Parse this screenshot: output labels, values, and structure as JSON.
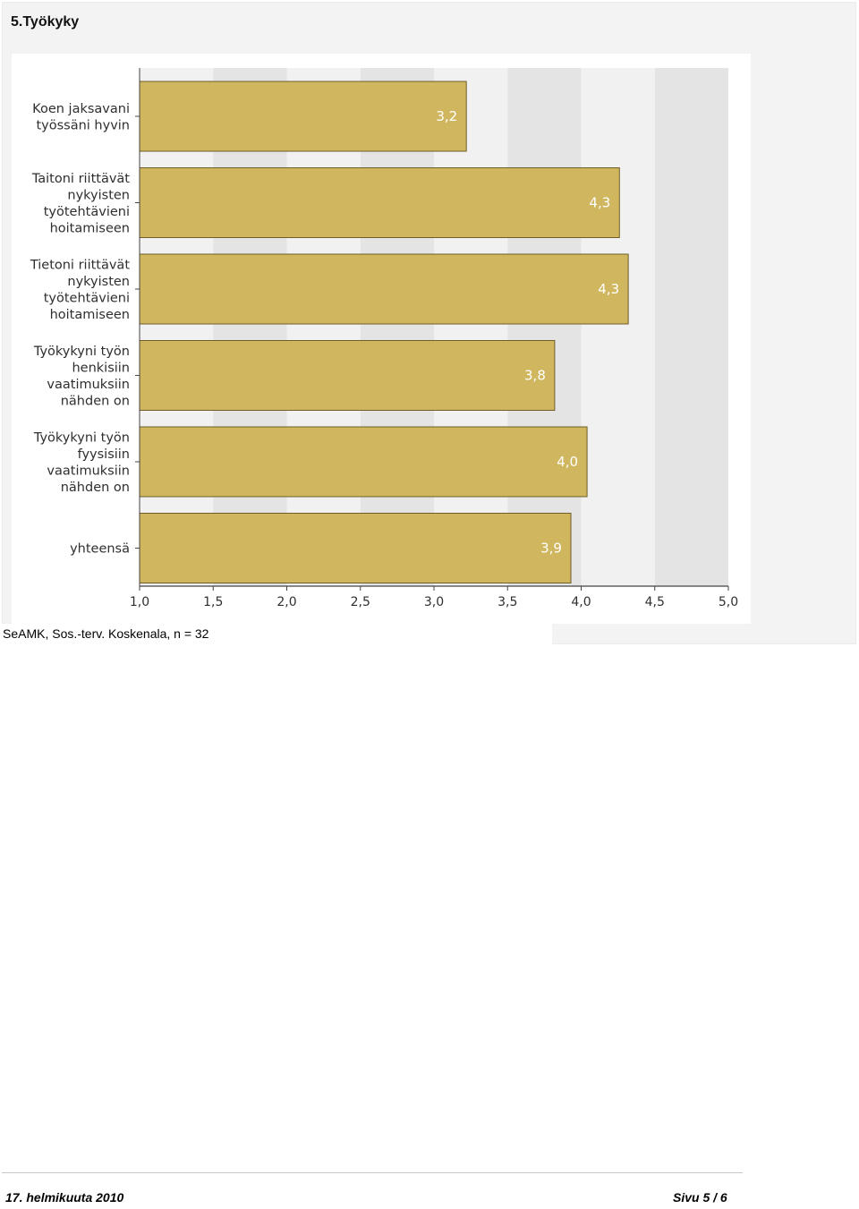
{
  "page": {
    "section_title": "5.Työkyky",
    "footnote": "SeAMK, Sos.-terv. Koskenala, n = 32",
    "footer_date": "17. helmikuuta 2010",
    "footer_page": "Sivu 5 / 6"
  },
  "chart_data": {
    "type": "bar",
    "orientation": "horizontal",
    "categories": [
      [
        "Koen jaksavani",
        "työssäni hyvin"
      ],
      [
        "Taitoni riittävät",
        "nykyisten",
        "työtehtävieni",
        "hoitamiseen"
      ],
      [
        "Tietoni riittävät",
        "nykyisten",
        "työtehtävieni",
        "hoitamiseen"
      ],
      [
        "Työkykyni työn",
        "henkisiin",
        "vaatimuksiin",
        "nähden on"
      ],
      [
        "Työkykyni työn",
        "fyysisiin",
        "vaatimuksiin",
        "nähden on"
      ],
      [
        "yhteensä"
      ]
    ],
    "values": [
      3.22,
      4.26,
      4.32,
      3.82,
      4.04,
      3.93
    ],
    "value_labels": [
      "3,2",
      "4,3",
      "4,3",
      "3,8",
      "4,0",
      "3,9"
    ],
    "xlim": [
      1.0,
      5.0
    ],
    "xticks": [
      1.0,
      1.5,
      2.0,
      2.5,
      3.0,
      3.5,
      4.0,
      4.5,
      5.0
    ],
    "xtick_labels": [
      "1,0",
      "1,5",
      "2,0",
      "2,5",
      "3,0",
      "3,5",
      "4,0",
      "4,5",
      "5,0"
    ],
    "grid": "alternating vertical bands",
    "colors": {
      "bar_fill": "#d0b75f",
      "bar_stroke": "#6e5d26",
      "band_light": "#f1f1f1",
      "band_dark": "#e4e4e4",
      "axis": "#444444"
    }
  }
}
